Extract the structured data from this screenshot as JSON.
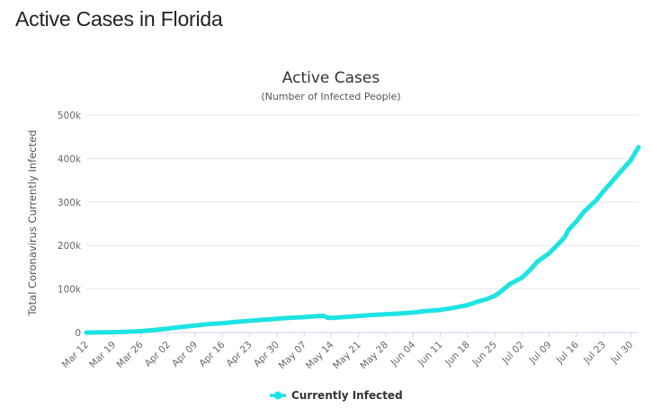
{
  "page": {
    "heading": "Active Cases in Florida"
  },
  "chart_data": {
    "type": "line",
    "title": "Active Cases",
    "subtitle": "(Number of Infected People)",
    "xlabel": "",
    "ylabel": "Total Coronavirus Currently Infected",
    "ylim": [
      0,
      500000
    ],
    "yticks": [
      {
        "value": 0,
        "label": "0"
      },
      {
        "value": 100000,
        "label": "100k"
      },
      {
        "value": 200000,
        "label": "200k"
      },
      {
        "value": 300000,
        "label": "300k"
      },
      {
        "value": 400000,
        "label": "400k"
      },
      {
        "value": 500000,
        "label": "500k"
      }
    ],
    "xticks": [
      {
        "day": 0,
        "label": "Mar 12"
      },
      {
        "day": 7,
        "label": "Mar 19"
      },
      {
        "day": 14,
        "label": "Mar 26"
      },
      {
        "day": 21,
        "label": "Apr 02"
      },
      {
        "day": 28,
        "label": "Apr 09"
      },
      {
        "day": 35,
        "label": "Apr 16"
      },
      {
        "day": 42,
        "label": "Apr 23"
      },
      {
        "day": 49,
        "label": "Apr 30"
      },
      {
        "day": 56,
        "label": "May 07"
      },
      {
        "day": 63,
        "label": "May 14"
      },
      {
        "day": 70,
        "label": "May 21"
      },
      {
        "day": 77,
        "label": "May 28"
      },
      {
        "day": 84,
        "label": "Jun 04"
      },
      {
        "day": 91,
        "label": "Jun 11"
      },
      {
        "day": 98,
        "label": "Jun 18"
      },
      {
        "day": 105,
        "label": "Jun 25"
      },
      {
        "day": 112,
        "label": "Jul 02"
      },
      {
        "day": 119,
        "label": "Jul 09"
      },
      {
        "day": 126,
        "label": "Jul 16"
      },
      {
        "day": 133,
        "label": "Jul 23"
      },
      {
        "day": 140,
        "label": "Jul 30"
      }
    ],
    "x_range_days": [
      0,
      142
    ],
    "series": [
      {
        "name": "Currently Infected",
        "color": "#1ee3e3",
        "points": [
          [
            0,
            0
          ],
          [
            3,
            200
          ],
          [
            7,
            700
          ],
          [
            10,
            1500
          ],
          [
            14,
            3000
          ],
          [
            17,
            5500
          ],
          [
            21,
            9000
          ],
          [
            24,
            12500
          ],
          [
            28,
            16000
          ],
          [
            31,
            19000
          ],
          [
            35,
            21500
          ],
          [
            38,
            24000
          ],
          [
            42,
            27000
          ],
          [
            45,
            29000
          ],
          [
            49,
            31500
          ],
          [
            52,
            33500
          ],
          [
            56,
            35500
          ],
          [
            59,
            37500
          ],
          [
            61,
            38500
          ],
          [
            62,
            34000
          ],
          [
            63,
            33500
          ],
          [
            66,
            35500
          ],
          [
            70,
            38000
          ],
          [
            73,
            40000
          ],
          [
            77,
            42000
          ],
          [
            80,
            43500
          ],
          [
            84,
            46000
          ],
          [
            87,
            49000
          ],
          [
            91,
            52000
          ],
          [
            94,
            56000
          ],
          [
            98,
            63000
          ],
          [
            101,
            72000
          ],
          [
            103,
            77000
          ],
          [
            105,
            84000
          ],
          [
            107,
            97000
          ],
          [
            109,
            112000
          ],
          [
            112,
            126000
          ],
          [
            114,
            143000
          ],
          [
            116,
            163000
          ],
          [
            119,
            182000
          ],
          [
            121,
            200000
          ],
          [
            123,
            219000
          ],
          [
            124,
            236000
          ],
          [
            126,
            255000
          ],
          [
            128,
            278000
          ],
          [
            131,
            303000
          ],
          [
            133,
            325000
          ],
          [
            135,
            345000
          ],
          [
            137,
            366000
          ],
          [
            139,
            386000
          ],
          [
            140,
            396000
          ],
          [
            142,
            426000
          ]
        ]
      }
    ],
    "legend": {
      "position": "bottom-center"
    },
    "grid": true
  }
}
